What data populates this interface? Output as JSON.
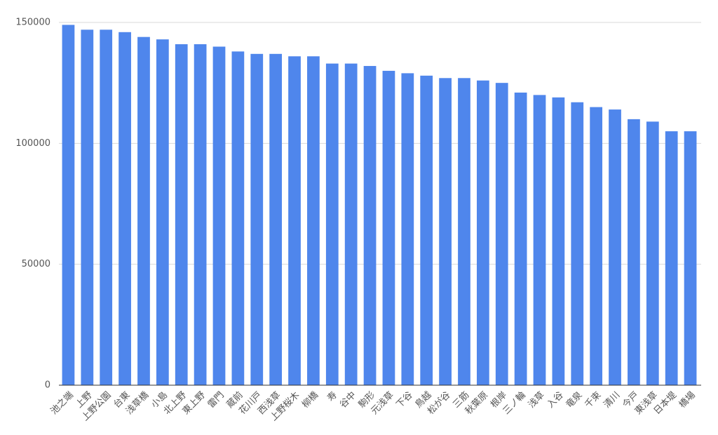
{
  "chart_data": {
    "type": "bar",
    "categories": [
      "池之端",
      "上野",
      "上野公園",
      "台東",
      "浅草橋",
      "小島",
      "北上野",
      "東上野",
      "雷門",
      "蔵前",
      "花川戸",
      "西浅草",
      "上野桜木",
      "柳橋",
      "寿",
      "谷中",
      "駒形",
      "元浅草",
      "下谷",
      "鳥越",
      "松が谷",
      "三筋",
      "秋葉原",
      "根岸",
      "三ノ輪",
      "浅草",
      "入谷",
      "竜泉",
      "千束",
      "清川",
      "今戸",
      "東浅草",
      "日本堤",
      "橋場"
    ],
    "values": [
      149000,
      147000,
      147000,
      146000,
      144000,
      143000,
      141000,
      141000,
      140000,
      138000,
      137000,
      137000,
      136000,
      136000,
      133000,
      133000,
      132000,
      130000,
      129000,
      128000,
      127000,
      127000,
      126000,
      125000,
      121000,
      120000,
      119000,
      117000,
      115000,
      114000,
      110000,
      109000,
      105000,
      105000
    ],
    "color": "#4f86ec",
    "ylim": [
      0,
      150000
    ],
    "yticks": [
      0,
      50000,
      100000,
      150000
    ],
    "grid": true
  }
}
